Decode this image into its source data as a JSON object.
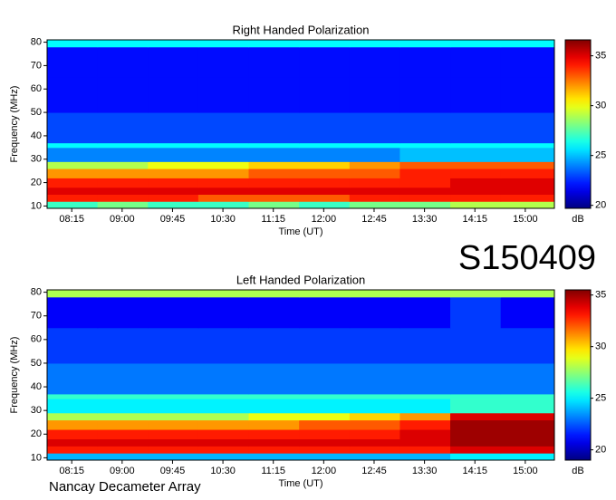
{
  "label": "S150409",
  "footer": "Nancay Decameter Array",
  "chart_data": [
    {
      "type": "heatmap",
      "title": "Right Handed Polarization",
      "x_label": "Time (UT)",
      "y_label": "Frequency (MHz)",
      "colorbar_label": "dB",
      "colormap": "jet",
      "xlim": [
        473,
        926
      ],
      "xticks": [
        {
          "value": 495,
          "label": "08:15"
        },
        {
          "value": 540,
          "label": "09:00"
        },
        {
          "value": 585,
          "label": "09:45"
        },
        {
          "value": 630,
          "label": "10:30"
        },
        {
          "value": 675,
          "label": "11:15"
        },
        {
          "value": 720,
          "label": "12:00"
        },
        {
          "value": 765,
          "label": "12:45"
        },
        {
          "value": 810,
          "label": "13:30"
        },
        {
          "value": 855,
          "label": "14:15"
        },
        {
          "value": 900,
          "label": "15:00"
        }
      ],
      "ylim": [
        9,
        81
      ],
      "yticks": [
        10,
        20,
        30,
        40,
        50,
        60,
        70,
        80
      ],
      "zlim": [
        19.7,
        36.6
      ],
      "zticks": [
        20,
        25,
        30,
        35
      ],
      "xbins": [
        473,
        518,
        563,
        608,
        653,
        698,
        743,
        788,
        833,
        878,
        926
      ],
      "ybins": [
        9,
        12,
        15,
        18,
        22,
        26,
        29,
        35,
        37,
        50,
        65,
        78,
        81
      ],
      "z": [
        [
          27,
          28,
          27,
          27,
          28,
          27,
          28,
          28,
          29,
          29
        ],
        [
          34,
          34,
          34,
          33,
          33,
          33,
          34,
          34,
          34,
          34
        ],
        [
          35,
          35,
          35,
          35,
          35,
          35,
          35,
          35,
          35,
          35
        ],
        [
          34,
          34,
          34,
          34,
          34,
          34,
          34,
          34,
          35,
          35
        ],
        [
          32,
          32,
          32,
          32,
          33,
          33,
          33,
          34,
          34,
          34
        ],
        [
          29,
          29,
          30,
          30,
          31,
          31,
          32,
          33,
          33,
          33
        ],
        [
          24,
          24,
          24,
          24,
          24,
          24,
          24,
          25,
          25,
          25
        ],
        [
          26,
          26,
          26,
          26,
          26,
          26,
          26,
          26,
          26,
          26
        ],
        [
          23,
          23,
          23,
          23,
          23,
          23,
          23,
          23,
          23,
          23
        ],
        [
          22,
          22,
          22,
          22,
          22,
          22,
          22,
          22,
          22,
          22
        ],
        [
          22,
          22,
          22,
          22,
          22,
          22,
          22,
          22,
          22,
          22
        ],
        [
          26,
          26,
          26,
          26,
          26,
          26,
          26,
          26,
          26,
          26
        ]
      ]
    },
    {
      "type": "heatmap",
      "title": "Left Handed Polarization",
      "x_label": "Time (UT)",
      "y_label": "Frequency (MHz)",
      "colorbar_label": "dB",
      "colormap": "jet",
      "xlim": [
        473,
        926
      ],
      "xticks": [
        {
          "value": 495,
          "label": "08:15"
        },
        {
          "value": 540,
          "label": "09:00"
        },
        {
          "value": 585,
          "label": "09:45"
        },
        {
          "value": 630,
          "label": "10:30"
        },
        {
          "value": 675,
          "label": "11:15"
        },
        {
          "value": 720,
          "label": "12:00"
        },
        {
          "value": 765,
          "label": "12:45"
        },
        {
          "value": 810,
          "label": "13:30"
        },
        {
          "value": 855,
          "label": "14:15"
        },
        {
          "value": 900,
          "label": "15:00"
        }
      ],
      "ylim": [
        9,
        81
      ],
      "yticks": [
        10,
        20,
        30,
        40,
        50,
        60,
        70,
        80
      ],
      "zlim": [
        19,
        35.5
      ],
      "zticks": [
        20,
        25,
        30,
        35
      ],
      "xbins": [
        473,
        518,
        563,
        608,
        653,
        698,
        743,
        788,
        833,
        878,
        926
      ],
      "ybins": [
        9,
        12,
        15,
        18,
        22,
        26,
        29,
        35,
        37,
        50,
        65,
        78,
        81
      ],
      "z": [
        [
          24,
          24,
          24,
          24,
          24,
          24,
          24,
          24,
          25,
          25
        ],
        [
          33,
          33,
          33,
          33,
          33,
          33,
          33,
          33,
          34,
          34
        ],
        [
          34,
          34,
          34,
          34,
          34,
          34,
          34,
          34,
          35,
          35
        ],
        [
          33,
          33,
          33,
          33,
          33,
          33,
          33,
          34,
          35,
          35
        ],
        [
          31,
          31,
          31,
          31,
          31,
          32,
          32,
          33,
          35,
          35
        ],
        [
          28,
          28,
          28,
          28,
          29,
          29,
          30,
          31,
          34,
          34
        ],
        [
          25,
          25,
          25,
          25,
          25,
          25,
          25,
          25,
          26,
          26
        ],
        [
          26,
          26,
          26,
          26,
          26,
          26,
          26,
          26,
          26,
          26
        ],
        [
          23,
          23,
          23,
          23,
          23,
          23,
          23,
          23,
          23,
          23
        ],
        [
          22,
          22,
          22,
          22,
          22,
          22,
          22,
          22,
          22,
          22
        ],
        [
          21,
          21,
          21,
          21,
          21,
          21,
          21,
          21,
          22,
          21
        ],
        [
          28,
          28,
          28,
          28,
          28,
          28,
          28,
          28,
          28,
          28
        ]
      ]
    }
  ]
}
